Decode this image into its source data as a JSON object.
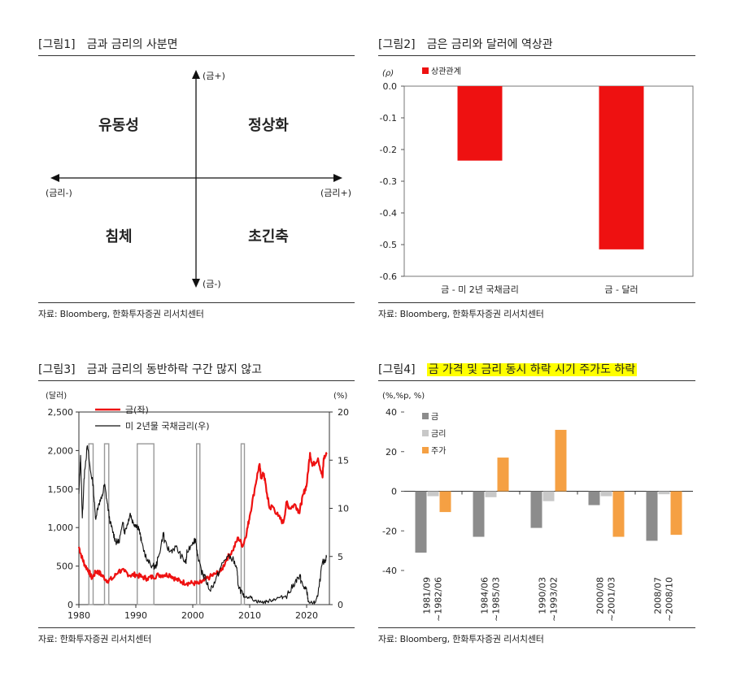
{
  "fig1": {
    "num": "[그림1]",
    "title": "금과 금리의 사분면",
    "axis_top": "(금+)",
    "axis_bottom": "(금-)",
    "axis_left": "(금리-)",
    "axis_right": "(금리+)",
    "q_top_left": "유동성",
    "q_top_right": "정상화",
    "q_bottom_left": "침체",
    "q_bottom_right": "초긴축",
    "source": "자료: Bloomberg, 한화투자증권 리서치센터"
  },
  "fig2": {
    "num": "[그림2]",
    "title": "금은 금리와 달러에 역상관",
    "source": "자료: Bloomberg, 한화투자증권 리서치센터"
  },
  "fig3": {
    "num": "[그림3]",
    "title": "금과 금리의 동반하락 구간 많지 않고",
    "source": "자료: 한화투자증권 리서치센터"
  },
  "fig4": {
    "num": "[그림4]",
    "title": "금 가격 및 금리 동시 하락 시기 주가도 하락",
    "source": "자료: Bloomberg, 한화투자증권 리서치센터"
  },
  "chart_data": [
    {
      "id": "fig2",
      "type": "bar",
      "unit_label": "(ρ)",
      "categories": [
        "금 - 미 2년 국채금리",
        "금 - 달러"
      ],
      "series": [
        {
          "name": "상관관계",
          "values": [
            -0.235,
            -0.515
          ],
          "color": "#ee1111"
        }
      ],
      "ylim": [
        -0.6,
        0.0
      ],
      "yticks": [
        0.0,
        -0.1,
        -0.2,
        -0.3,
        -0.4,
        -0.5,
        -0.6
      ],
      "ytick_labels": [
        "0.0",
        "-0.1",
        "-0.2",
        "-0.3",
        "-0.4",
        "-0.5",
        "-0.6"
      ],
      "legend_position": "top-left"
    },
    {
      "id": "fig3",
      "type": "line",
      "left_unit": "(달러)",
      "right_unit": "(%)",
      "xlim": [
        1980,
        2024
      ],
      "xticks": [
        1980,
        1990,
        2000,
        2010,
        2020
      ],
      "ylim_left": [
        0,
        2500
      ],
      "yticks_left": [
        0,
        500,
        1000,
        1500,
        2000,
        2500
      ],
      "ytick_labels_left": [
        "0",
        "500",
        "1,000",
        "1,500",
        "2,000",
        "2,500"
      ],
      "ylim_right": [
        0,
        20
      ],
      "yticks_right": [
        0,
        5,
        10,
        15,
        20
      ],
      "legend_position": "top-left",
      "series": [
        {
          "name": "금(좌)",
          "axis": "left",
          "color": "#ee1111",
          "points": [
            [
              1980,
              750
            ],
            [
              1980.5,
              620
            ],
            [
              1981,
              520
            ],
            [
              1981.7,
              440
            ],
            [
              1982.3,
              340
            ],
            [
              1983,
              430
            ],
            [
              1983.5,
              420
            ],
            [
              1984,
              380
            ],
            [
              1985,
              310
            ],
            [
              1986,
              340
            ],
            [
              1987,
              440
            ],
            [
              1988,
              430
            ],
            [
              1989,
              380
            ],
            [
              1990,
              390
            ],
            [
              1991,
              360
            ],
            [
              1992,
              340
            ],
            [
              1993,
              360
            ],
            [
              1994,
              385
            ],
            [
              1995,
              385
            ],
            [
              1996,
              390
            ],
            [
              1997,
              330
            ],
            [
              1998,
              295
            ],
            [
              1999,
              280
            ],
            [
              2000,
              280
            ],
            [
              2001,
              270
            ],
            [
              2002,
              310
            ],
            [
              2003,
              360
            ],
            [
              2004,
              400
            ],
            [
              2005,
              440
            ],
            [
              2006,
              600
            ],
            [
              2007,
              700
            ],
            [
              2008,
              870
            ],
            [
              2008.8,
              760
            ],
            [
              2009.5,
              950
            ],
            [
              2010,
              1150
            ],
            [
              2011,
              1550
            ],
            [
              2011.7,
              1820
            ],
            [
              2012,
              1650
            ],
            [
              2012.5,
              1700
            ],
            [
              2013,
              1450
            ],
            [
              2013.5,
              1250
            ],
            [
              2014,
              1280
            ],
            [
              2015,
              1150
            ],
            [
              2015.9,
              1060
            ],
            [
              2016.5,
              1330
            ],
            [
              2017,
              1250
            ],
            [
              2018,
              1300
            ],
            [
              2018.7,
              1200
            ],
            [
              2019,
              1300
            ],
            [
              2019.5,
              1450
            ],
            [
              2020,
              1550
            ],
            [
              2020.6,
              1970
            ],
            [
              2021,
              1800
            ],
            [
              2022,
              1900
            ],
            [
              2022.8,
              1650
            ],
            [
              2023,
              1900
            ],
            [
              2023.5,
              1950
            ]
          ]
        },
        {
          "name": "미 2년물 국채금리(우)",
          "axis": "right",
          "color": "#111111",
          "points": [
            [
              1980,
              11.5
            ],
            [
              1980.3,
              15.5
            ],
            [
              1980.6,
              9
            ],
            [
              1981,
              14
            ],
            [
              1981.5,
              16.5
            ],
            [
              1982,
              14
            ],
            [
              1982.5,
              12.5
            ],
            [
              1982.9,
              9
            ],
            [
              1983.5,
              10.5
            ],
            [
              1984,
              11
            ],
            [
              1984.5,
              12.5
            ],
            [
              1985,
              10.5
            ],
            [
              1985.5,
              8.5
            ],
            [
              1986,
              7.5
            ],
            [
              1986.5,
              6.5
            ],
            [
              1987,
              6.5
            ],
            [
              1987.8,
              8.5
            ],
            [
              1988,
              7.5
            ],
            [
              1988.6,
              8.5
            ],
            [
              1989,
              9.5
            ],
            [
              1989.5,
              8.5
            ],
            [
              1990,
              8.3
            ],
            [
              1990.5,
              8
            ],
            [
              1991,
              6.5
            ],
            [
              1992,
              4.5
            ],
            [
              1993,
              4
            ],
            [
              1993.5,
              3.9
            ],
            [
              1994,
              5
            ],
            [
              1994.9,
              7.5
            ],
            [
              1995,
              6.5
            ],
            [
              1996,
              5.5
            ],
            [
              1997,
              6
            ],
            [
              1998,
              5
            ],
            [
              1998.8,
              4.3
            ],
            [
              1999,
              5.5
            ],
            [
              2000,
              6.5
            ],
            [
              2000.5,
              6.8
            ],
            [
              2001,
              4.5
            ],
            [
              2001.9,
              2.8
            ],
            [
              2002,
              3
            ],
            [
              2003,
              1.5
            ],
            [
              2004,
              2.5
            ],
            [
              2005,
              4
            ],
            [
              2006,
              5
            ],
            [
              2007,
              4.8
            ],
            [
              2007.7,
              3.8
            ],
            [
              2008,
              2
            ],
            [
              2008.8,
              1
            ],
            [
              2009,
              0.9
            ],
            [
              2010,
              0.8
            ],
            [
              2011,
              0.4
            ],
            [
              2012,
              0.25
            ],
            [
              2013,
              0.3
            ],
            [
              2014,
              0.5
            ],
            [
              2015,
              0.7
            ],
            [
              2016,
              0.8
            ],
            [
              2017,
              1.3
            ],
            [
              2018,
              2.4
            ],
            [
              2018.9,
              2.9
            ],
            [
              2019,
              2.4
            ],
            [
              2019.7,
              1.6
            ],
            [
              2020,
              1.5
            ],
            [
              2020.3,
              0.3
            ],
            [
              2021,
              0.15
            ],
            [
              2021.5,
              0.25
            ],
            [
              2022,
              1
            ],
            [
              2022.8,
              4.5
            ],
            [
              2023,
              4.2
            ],
            [
              2023.5,
              4.9
            ]
          ]
        }
      ],
      "highlight_periods": [
        [
          1981.75,
          1982.5
        ],
        [
          1984.5,
          1985.25
        ],
        [
          1990.25,
          1993.17
        ],
        [
          2000.67,
          2001.25
        ],
        [
          2008.5,
          2008.83
        ]
      ]
    },
    {
      "id": "fig4",
      "type": "bar",
      "unit_label": "(%,%p, %)",
      "categories": [
        [
          "1981/09",
          "~1982/06"
        ],
        [
          "1984/06",
          "~1985/03"
        ],
        [
          "1990/03",
          "~1993/02"
        ],
        [
          "2000/08",
          "~2001/03"
        ],
        [
          "2008/07",
          "~2008/10"
        ]
      ],
      "series": [
        {
          "name": "금",
          "color": "#8c8c8c",
          "values": [
            -31,
            -23,
            -18.5,
            -7,
            -25
          ]
        },
        {
          "name": "금리",
          "color": "#c8c8c8",
          "values": [
            -2.5,
            -3,
            -5,
            -2.5,
            -1.5
          ]
        },
        {
          "name": "주가",
          "color": "#f5a043",
          "values": [
            -10.5,
            17,
            31,
            -23,
            -22
          ]
        }
      ],
      "ylim": [
        -40,
        40
      ],
      "yticks": [
        40,
        20,
        0,
        -20,
        -40
      ],
      "legend_position": "top-left"
    }
  ]
}
